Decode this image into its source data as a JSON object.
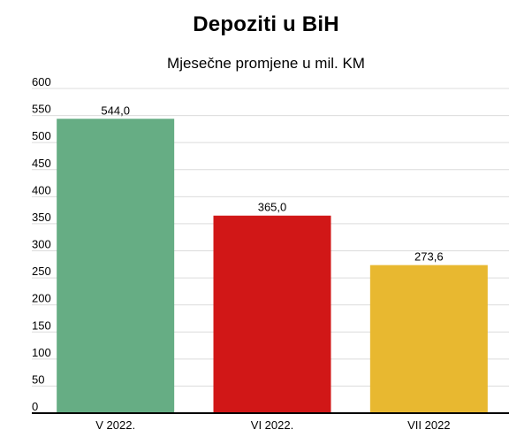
{
  "chart_data": {
    "type": "bar",
    "title": "Depoziti u BiH",
    "subtitle": "Mjesečne promjene u mil. KM",
    "categories": [
      "V 2022.",
      "VI 2022.",
      "VII 2022"
    ],
    "values": [
      544.0,
      365.0,
      273.6
    ],
    "value_labels": [
      "544,0",
      "365,0",
      "273,6"
    ],
    "colors": [
      "#66ad84",
      "#d11717",
      "#e8b830"
    ],
    "ylim": [
      0,
      600
    ],
    "yticks": [
      0,
      50,
      100,
      150,
      200,
      250,
      300,
      350,
      400,
      450,
      500,
      550,
      600
    ],
    "grid": true,
    "xlabel": "",
    "ylabel": ""
  }
}
